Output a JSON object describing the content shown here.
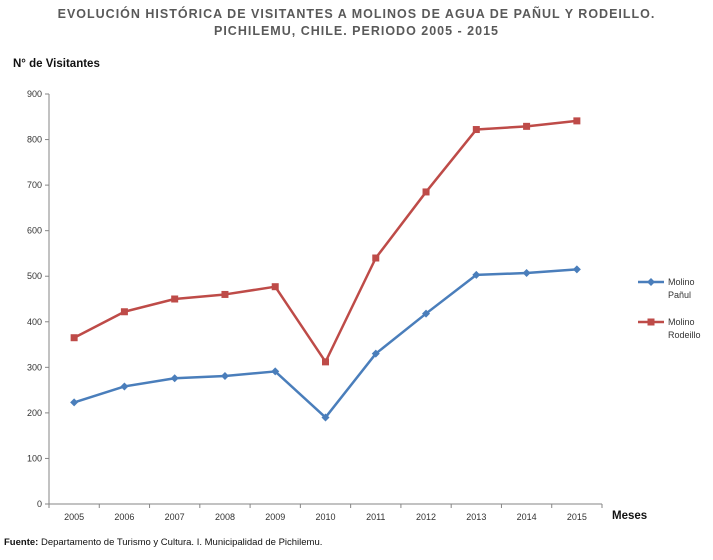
{
  "chart_data": {
    "type": "line",
    "title_line1": "EVOLUCIÓN HISTÓRICA DE VISITANTES A MOLINOS DE AGUA DE  PAÑUL Y RODEILLO.",
    "title_line2": "PICHILEMU, CHILE. PERIODO 2005 - 2015",
    "ylabel": "N° de Visitantes",
    "xlabel": "Meses",
    "categories": [
      "2005",
      "2006",
      "2007",
      "2008",
      "2009",
      "2010",
      "2011",
      "2012",
      "2013",
      "2014",
      "2015"
    ],
    "ylim": [
      0,
      900
    ],
    "yticks": [
      0,
      100,
      200,
      300,
      400,
      500,
      600,
      700,
      800,
      900
    ],
    "grid": false,
    "legend_position": "right",
    "series": [
      {
        "name_line1": "Molino",
        "name_line2": "Pañul",
        "color": "#4a7ebb",
        "marker": "diamond",
        "values": [
          223,
          258,
          276,
          281,
          291,
          190,
          330,
          418,
          503,
          507,
          515
        ]
      },
      {
        "name_line1": "Molino",
        "name_line2": "Rodeillo",
        "color": "#be4b48",
        "marker": "square",
        "values": [
          365,
          422,
          450,
          460,
          477,
          312,
          540,
          685,
          822,
          829,
          841
        ]
      }
    ]
  },
  "footnote": {
    "label": "Fuente:",
    "text": " Departamento de Turismo y Cultura. I.  Municipalidad de  Pichilemu."
  }
}
